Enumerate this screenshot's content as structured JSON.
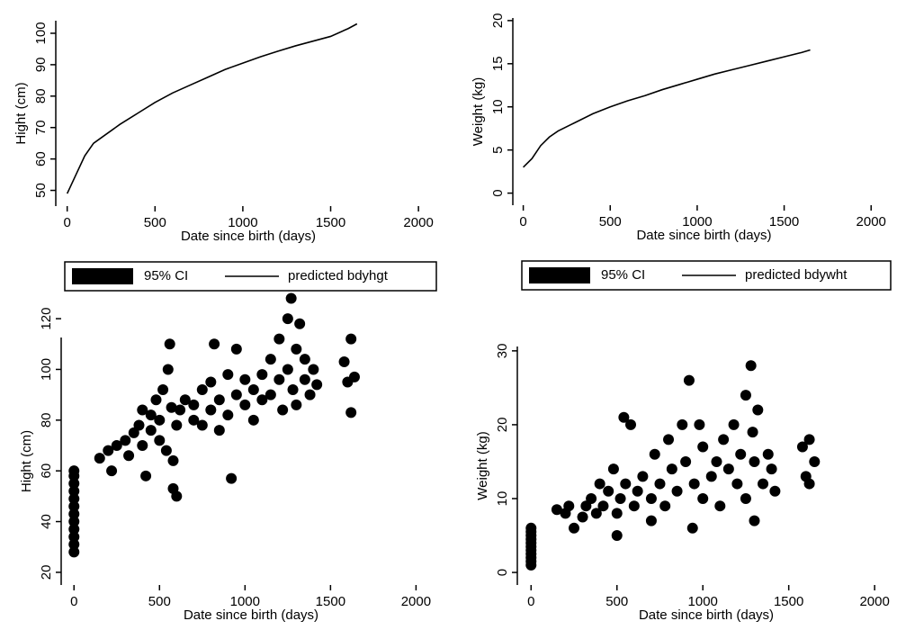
{
  "chart_data": [
    {
      "type": "line",
      "xlabel": "Date since birth (days)",
      "ylabel": "Hight (cm)",
      "ci_label": "95% CI",
      "x": [
        0,
        50,
        100,
        150,
        200,
        300,
        400,
        500,
        600,
        700,
        800,
        900,
        1000,
        1100,
        1200,
        1300,
        1400,
        1500,
        1600,
        1650
      ],
      "series": [
        {
          "name": "predicted bdyhgt",
          "color": "#000000",
          "values": [
            49,
            55,
            61,
            65,
            67,
            71,
            74.5,
            78,
            81,
            83.5,
            86,
            88.5,
            90.5,
            92.5,
            94.3,
            96,
            97.5,
            99,
            101.5,
            103
          ]
        }
      ],
      "xlim": [
        -65,
        2025
      ],
      "ylim": [
        45,
        104
      ],
      "xticks": [
        0,
        500,
        1000,
        1500,
        2000
      ],
      "yticks": [
        50,
        60,
        70,
        80,
        90,
        100
      ]
    },
    {
      "type": "line",
      "xlabel": "Date since birth (days)",
      "ylabel": "Weight (kg)",
      "ci_label": "95% CI",
      "x": [
        0,
        50,
        100,
        150,
        200,
        300,
        400,
        500,
        600,
        700,
        800,
        900,
        1000,
        1100,
        1200,
        1300,
        1400,
        1500,
        1600,
        1650
      ],
      "series": [
        {
          "name": "predicted bdywht",
          "color": "#000000",
          "values": [
            3,
            4,
            5.5,
            6.5,
            7.2,
            8.2,
            9.2,
            10,
            10.7,
            11.3,
            12,
            12.6,
            13.2,
            13.8,
            14.3,
            14.8,
            15.3,
            15.8,
            16.3,
            16.6
          ]
        }
      ],
      "xlim": [
        -60,
        2035
      ],
      "ylim": [
        -1.4,
        20.3
      ],
      "xticks": [
        0,
        500,
        1000,
        1500,
        2000
      ],
      "yticks": [
        0,
        5,
        10,
        15,
        20
      ]
    },
    {
      "type": "scatter",
      "xlabel": "Date since birth (days)",
      "ylabel": "Hight (cm)",
      "color": "#000000",
      "x": [
        0,
        0,
        0,
        0,
        0,
        0,
        0,
        0,
        0,
        0,
        0,
        0,
        150,
        200,
        220,
        250,
        300,
        320,
        350,
        380,
        400,
        400,
        420,
        450,
        450,
        480,
        500,
        500,
        520,
        540,
        550,
        560,
        570,
        580,
        580,
        600,
        600,
        620,
        650,
        700,
        700,
        750,
        750,
        800,
        800,
        820,
        850,
        850,
        900,
        900,
        920,
        950,
        950,
        1000,
        1000,
        1050,
        1050,
        1100,
        1100,
        1150,
        1150,
        1200,
        1200,
        1220,
        1250,
        1250,
        1270,
        1280,
        1300,
        1300,
        1320,
        1350,
        1350,
        1380,
        1400,
        1420,
        1580,
        1600,
        1620,
        1620,
        1640
      ],
      "y": [
        28,
        31,
        34,
        37,
        40,
        43,
        46,
        49,
        52,
        55,
        58,
        60,
        65,
        68,
        60,
        70,
        72,
        66,
        75,
        78,
        70,
        84,
        58,
        76,
        82,
        88,
        72,
        80,
        92,
        68,
        100,
        110,
        85,
        53,
        64,
        50,
        78,
        84,
        88,
        80,
        86,
        78,
        92,
        84,
        95,
        110,
        76,
        88,
        98,
        82,
        57,
        108,
        90,
        86,
        96,
        92,
        80,
        98,
        88,
        104,
        90,
        96,
        112,
        84,
        120,
        100,
        128,
        92,
        108,
        86,
        118,
        96,
        104,
        90,
        100,
        94,
        103,
        95,
        112,
        83,
        97
      ],
      "xlim": [
        -75,
        2040
      ],
      "ylim": [
        15,
        125
      ],
      "xticks": [
        0,
        500,
        1000,
        1500,
        2000
      ],
      "yticks": [
        20,
        40,
        60,
        80,
        100,
        120
      ]
    },
    {
      "type": "scatter",
      "xlabel": "Date since birth (days)",
      "ylabel": "Weight (kg)",
      "color": "#000000",
      "x": [
        0,
        0,
        0,
        0,
        0,
        0,
        0,
        0,
        0,
        0,
        0,
        150,
        200,
        220,
        250,
        300,
        320,
        350,
        380,
        400,
        420,
        450,
        480,
        500,
        500,
        520,
        540,
        550,
        580,
        600,
        620,
        650,
        700,
        700,
        720,
        750,
        780,
        800,
        820,
        850,
        880,
        900,
        920,
        940,
        950,
        980,
        1000,
        1000,
        1050,
        1080,
        1100,
        1120,
        1150,
        1180,
        1200,
        1220,
        1250,
        1250,
        1280,
        1290,
        1300,
        1300,
        1320,
        1350,
        1380,
        1400,
        1420,
        1580,
        1600,
        1620,
        1620,
        1650
      ],
      "y": [
        1,
        1.5,
        2,
        2.5,
        3,
        3.5,
        4,
        4.5,
        5,
        5.5,
        6,
        8.5,
        8,
        9,
        6,
        7.5,
        9,
        10,
        8,
        12,
        9,
        11,
        14,
        8,
        5,
        10,
        21,
        12,
        20,
        9,
        11,
        13,
        7,
        10,
        16,
        12,
        9,
        18,
        14,
        11,
        20,
        15,
        26,
        6,
        12,
        20,
        10,
        17,
        13,
        15,
        9,
        18,
        14,
        20,
        12,
        16,
        24,
        10,
        28,
        19,
        15,
        7,
        22,
        12,
        16,
        14,
        11,
        17,
        13,
        18,
        12,
        15
      ],
      "xlim": [
        -80,
        2015
      ],
      "ylim": [
        -1.7,
        31.2
      ],
      "xticks": [
        0,
        500,
        1000,
        1500,
        2000
      ],
      "yticks": [
        0,
        10,
        20,
        30
      ]
    }
  ]
}
